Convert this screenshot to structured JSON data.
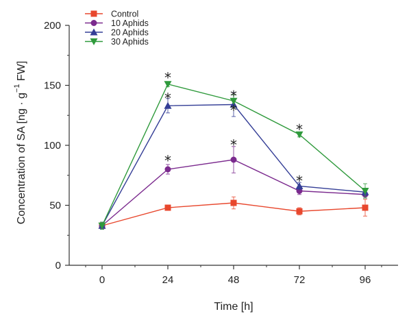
{
  "chart_data": {
    "type": "line",
    "xlabel": "Time [h]",
    "ylabel_main": "Concentration of SA [ng · g",
    "ylabel_sup": "−1",
    "ylabel_tail": " FW]",
    "x": [
      0,
      24,
      48,
      72,
      96
    ],
    "x_ticks": [
      "0",
      "24",
      "48",
      "72",
      "96"
    ],
    "y_ticks": [
      "0",
      "50",
      "100",
      "150",
      "200"
    ],
    "xlim": [
      -12,
      108
    ],
    "ylim": [
      0,
      200
    ],
    "legend_position": "top-left",
    "series": [
      {
        "name": "Control",
        "color": "#e8472d",
        "marker": "square",
        "values": [
          33,
          48,
          52,
          45,
          48
        ],
        "errors": [
          3,
          2,
          5,
          3,
          7
        ]
      },
      {
        "name": "10 Aphids",
        "color": "#7b2a8e",
        "marker": "circle",
        "values": [
          33,
          80,
          88,
          62,
          59
        ],
        "errors": [
          3,
          4,
          11,
          3,
          3
        ]
      },
      {
        "name": "20 Aphids",
        "color": "#343e96",
        "marker": "triangle-up",
        "values": [
          33,
          133,
          134,
          66,
          61
        ],
        "errors": [
          3,
          6,
          10,
          3,
          3
        ]
      },
      {
        "name": "30 Aphids",
        "color": "#2f9a3c",
        "marker": "triangle-down",
        "values": [
          33,
          151,
          137,
          109,
          62
        ],
        "errors": [
          3,
          2,
          5,
          2,
          6
        ]
      }
    ],
    "annotations": [
      {
        "text": "*",
        "x": 24,
        "y": 158
      },
      {
        "text": "*",
        "x": 24,
        "y": 141
      },
      {
        "text": "*",
        "x": 24,
        "y": 89
      },
      {
        "text": "*",
        "x": 48,
        "y": 143
      },
      {
        "text": "*",
        "x": 48,
        "y": 131
      },
      {
        "text": "*",
        "x": 48,
        "y": 102
      },
      {
        "text": "*",
        "x": 72,
        "y": 115
      },
      {
        "text": "*",
        "x": 72,
        "y": 72
      }
    ]
  }
}
